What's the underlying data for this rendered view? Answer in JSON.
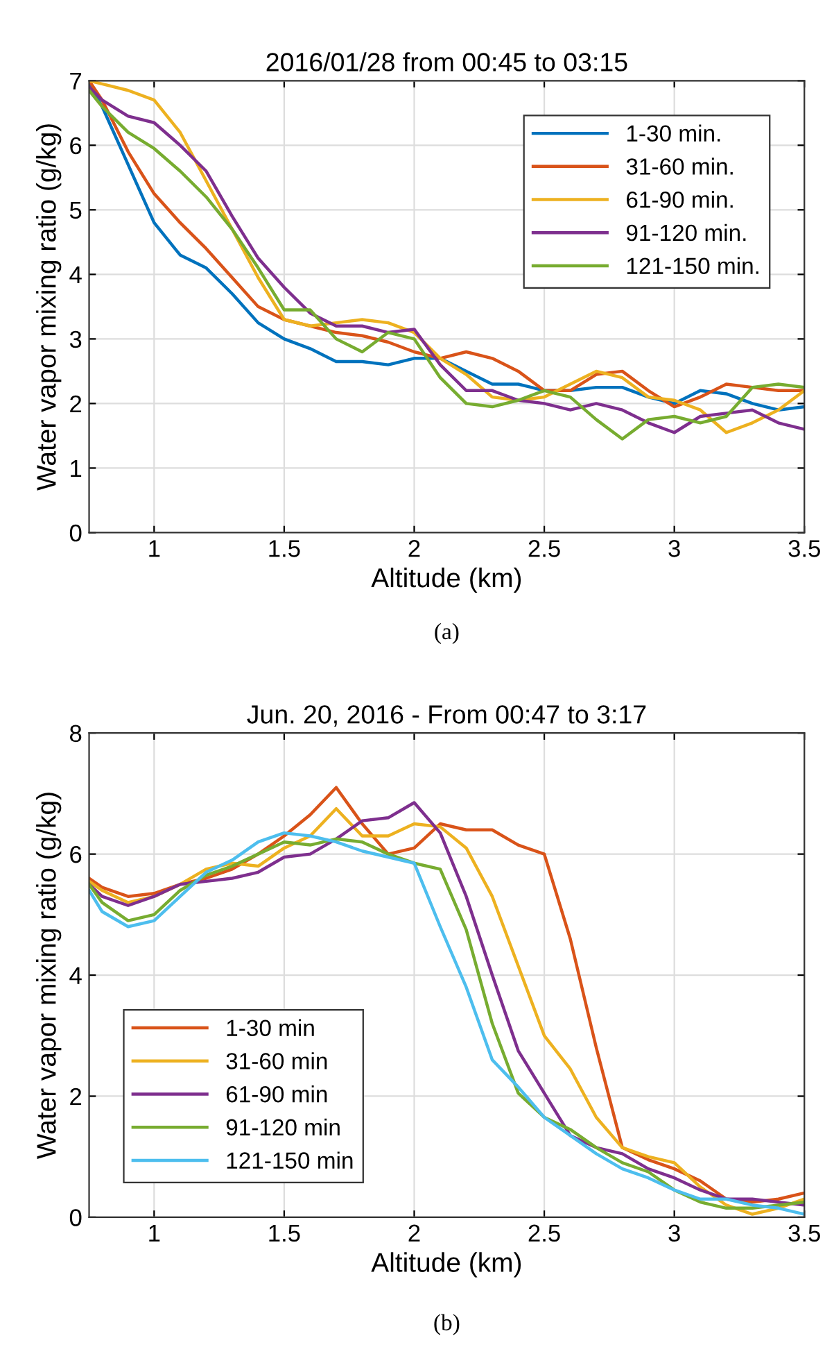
{
  "chart_data": [
    {
      "type": "line",
      "title": "2016/01/28 from 00:45 to 03:15",
      "xlabel": "Altitude (km)",
      "ylabel": "Water vapor mixing ratio (g/kg)",
      "annotations": [
        "(a)"
      ],
      "x": [
        0.75,
        0.8,
        0.9,
        1.0,
        1.1,
        1.2,
        1.3,
        1.4,
        1.5,
        1.6,
        1.7,
        1.8,
        1.9,
        2.0,
        2.1,
        2.2,
        2.3,
        2.4,
        2.5,
        2.6,
        2.7,
        2.8,
        2.9,
        3.0,
        3.1,
        3.2,
        3.3,
        3.4,
        3.5
      ],
      "series": [
        {
          "name": "1-30 min.",
          "color": "#0072bd",
          "values": [
            6.95,
            6.6,
            5.7,
            4.8,
            4.3,
            4.1,
            3.7,
            3.25,
            3.0,
            2.85,
            2.65,
            2.65,
            2.6,
            2.7,
            2.7,
            2.5,
            2.3,
            2.3,
            2.2,
            2.2,
            2.25,
            2.25,
            2.1,
            2.0,
            2.2,
            2.15,
            2.0,
            1.9,
            1.95
          ]
        },
        {
          "name": "31-60 min.",
          "color": "#d95319",
          "values": [
            7.0,
            6.7,
            5.9,
            5.25,
            4.8,
            4.4,
            3.95,
            3.5,
            3.3,
            3.2,
            3.1,
            3.05,
            2.95,
            2.8,
            2.7,
            2.8,
            2.7,
            2.5,
            2.2,
            2.2,
            2.45,
            2.5,
            2.2,
            1.95,
            2.1,
            2.3,
            2.25,
            2.2,
            2.2
          ]
        },
        {
          "name": "61-90 min.",
          "color": "#edb120",
          "values": [
            7.0,
            6.95,
            6.85,
            6.7,
            6.2,
            5.45,
            4.7,
            3.95,
            3.3,
            3.2,
            3.25,
            3.3,
            3.25,
            3.1,
            2.7,
            2.45,
            2.1,
            2.05,
            2.1,
            2.3,
            2.5,
            2.4,
            2.1,
            2.05,
            1.9,
            1.55,
            1.7,
            1.9,
            2.2
          ]
        },
        {
          "name": "91-120 min.",
          "color": "#7e2f8e",
          "values": [
            6.9,
            6.7,
            6.45,
            6.35,
            6.0,
            5.6,
            4.9,
            4.25,
            3.8,
            3.4,
            3.2,
            3.2,
            3.1,
            3.15,
            2.6,
            2.2,
            2.2,
            2.05,
            2.0,
            1.9,
            2.0,
            1.9,
            1.7,
            1.55,
            1.8,
            1.85,
            1.9,
            1.7,
            1.6
          ]
        },
        {
          "name": "121-150 min.",
          "color": "#77ac30",
          "values": [
            6.85,
            6.6,
            6.2,
            5.95,
            5.6,
            5.2,
            4.7,
            4.1,
            3.45,
            3.45,
            3.0,
            2.8,
            3.1,
            3.0,
            2.4,
            2.0,
            1.95,
            2.05,
            2.2,
            2.1,
            1.75,
            1.45,
            1.75,
            1.8,
            1.7,
            1.8,
            2.25,
            2.3,
            2.25
          ]
        }
      ],
      "xlim": [
        0.75,
        3.5
      ],
      "xticks": [
        1,
        1.5,
        2,
        2.5,
        3,
        3.5
      ],
      "ylim": [
        0,
        7
      ],
      "yticks": [
        0,
        1,
        2,
        3,
        4,
        5,
        6,
        7
      ],
      "grid": true,
      "legend": "top right",
      "line_style": "solid"
    },
    {
      "type": "line",
      "title": "Jun. 20, 2016 - From 00:47 to 3:17",
      "xlabel": "Altitude (km)",
      "ylabel": "Water vapor mixing ratio (g/kg)",
      "annotations": [
        "(b)"
      ],
      "x": [
        0.75,
        0.8,
        0.9,
        1.0,
        1.1,
        1.2,
        1.3,
        1.4,
        1.5,
        1.6,
        1.7,
        1.8,
        1.9,
        2.0,
        2.1,
        2.2,
        2.3,
        2.4,
        2.5,
        2.6,
        2.7,
        2.8,
        2.9,
        3.0,
        3.1,
        3.2,
        3.3,
        3.4,
        3.5
      ],
      "series": [
        {
          "name": "1-30 min",
          "color": "#d95319",
          "values": [
            5.6,
            5.45,
            5.3,
            5.35,
            5.5,
            5.6,
            5.75,
            6.0,
            6.3,
            6.65,
            7.1,
            6.5,
            6.0,
            6.1,
            6.5,
            6.4,
            6.4,
            6.15,
            6.0,
            4.6,
            2.8,
            1.15,
            0.95,
            0.8,
            0.6,
            0.3,
            0.25,
            0.3,
            0.4
          ]
        },
        {
          "name": "31-60 min",
          "color": "#edb120",
          "values": [
            5.55,
            5.4,
            5.2,
            5.3,
            5.5,
            5.75,
            5.85,
            5.8,
            6.1,
            6.3,
            6.75,
            6.3,
            6.3,
            6.5,
            6.45,
            6.1,
            5.3,
            4.15,
            3.0,
            2.45,
            1.65,
            1.15,
            1.0,
            0.9,
            0.5,
            0.2,
            0.05,
            0.15,
            0.3
          ]
        },
        {
          "name": "61-90 min",
          "color": "#7e2f8e",
          "values": [
            5.5,
            5.3,
            5.15,
            5.3,
            5.5,
            5.55,
            5.6,
            5.7,
            5.95,
            6.0,
            6.25,
            6.55,
            6.6,
            6.85,
            6.35,
            5.3,
            4.0,
            2.75,
            2.05,
            1.35,
            1.15,
            1.05,
            0.8,
            0.65,
            0.45,
            0.3,
            0.3,
            0.25,
            0.2
          ]
        },
        {
          "name": "91-120 min",
          "color": "#77ac30",
          "values": [
            5.5,
            5.2,
            4.9,
            5.0,
            5.4,
            5.65,
            5.8,
            6.0,
            6.2,
            6.15,
            6.25,
            6.2,
            6.0,
            5.85,
            5.75,
            4.75,
            3.2,
            2.05,
            1.65,
            1.45,
            1.15,
            0.9,
            0.75,
            0.45,
            0.25,
            0.15,
            0.15,
            0.2,
            0.25
          ]
        },
        {
          "name": "121-150 min",
          "color": "#4dbeee",
          "values": [
            5.4,
            5.05,
            4.8,
            4.9,
            5.3,
            5.7,
            5.9,
            6.2,
            6.35,
            6.3,
            6.2,
            6.05,
            5.95,
            5.85,
            4.8,
            3.8,
            2.6,
            2.15,
            1.65,
            1.35,
            1.05,
            0.8,
            0.65,
            0.45,
            0.3,
            0.3,
            0.2,
            0.15,
            0.05
          ]
        }
      ],
      "xlim": [
        0.75,
        3.5
      ],
      "xticks": [
        1,
        1.5,
        2,
        2.5,
        3,
        3.5
      ],
      "ylim": [
        0,
        8
      ],
      "yticks": [
        0,
        2,
        4,
        6,
        8
      ],
      "grid": true,
      "legend": "bottom left",
      "line_style": "solid"
    }
  ]
}
